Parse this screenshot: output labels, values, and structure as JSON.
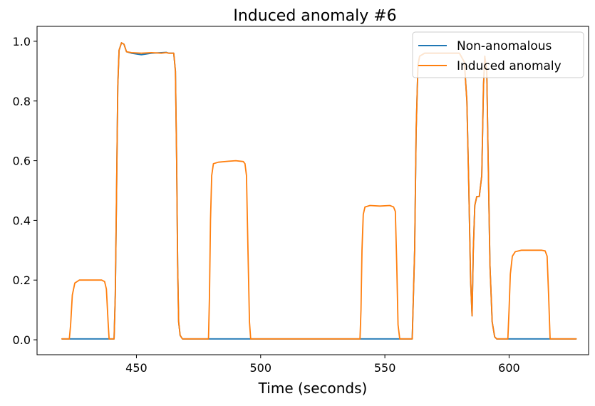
{
  "chart_data": {
    "type": "line",
    "title": "Induced anomaly #6",
    "xlabel": "Time (seconds)",
    "ylabel": "",
    "xlim": [
      410,
      632
    ],
    "ylim": [
      -0.05,
      1.05
    ],
    "xticks": [
      450,
      500,
      550,
      600
    ],
    "yticks": [
      0.0,
      0.2,
      0.4,
      0.6,
      0.8,
      1.0
    ],
    "ytick_labels": [
      "0.0",
      "0.2",
      "0.4",
      "0.6",
      "0.8",
      "1.0"
    ],
    "legend_position": "top-right",
    "series": [
      {
        "name": "Non-anomalous",
        "color": "#1f77b4",
        "x": [
          420,
          441,
          441.5,
          442,
          442.5,
          443,
          444,
          445,
          446,
          448,
          452,
          456,
          460,
          462,
          463,
          465,
          465.7,
          466.2,
          466.6,
          467,
          467.6,
          468.5,
          470,
          561,
          562,
          562.6,
          563.3,
          564,
          566,
          570,
          575,
          580,
          582,
          583,
          583.8,
          584.5,
          585.1,
          585.6,
          586.2,
          587,
          588,
          589,
          589.7,
          590.2,
          591,
          591.6,
          592.3,
          593.2,
          594.2,
          595,
          627
        ],
        "y": [
          0.003,
          0.003,
          0.15,
          0.5,
          0.85,
          0.97,
          0.995,
          0.99,
          0.965,
          0.96,
          0.955,
          0.96,
          0.962,
          0.963,
          0.96,
          0.96,
          0.9,
          0.6,
          0.25,
          0.06,
          0.015,
          0.003,
          0.003,
          0.003,
          0.3,
          0.7,
          0.92,
          0.95,
          0.96,
          0.96,
          0.96,
          0.96,
          0.93,
          0.8,
          0.5,
          0.2,
          0.08,
          0.3,
          0.45,
          0.48,
          0.48,
          0.55,
          0.85,
          0.95,
          0.9,
          0.6,
          0.25,
          0.06,
          0.01,
          0.003,
          0.003
        ]
      },
      {
        "name": "Induced anomaly",
        "color": "#ff7f0e",
        "x": [
          420,
          423,
          423.5,
          424.2,
          425.2,
          427,
          436,
          437.2,
          437.9,
          438.6,
          439,
          441,
          441.5,
          442,
          442.5,
          443,
          444,
          445,
          446,
          448,
          452,
          456,
          460,
          462,
          463,
          465,
          465.7,
          466.2,
          466.6,
          467,
          467.6,
          468.5,
          479,
          479.4,
          479.8,
          480.3,
          481,
          483,
          487,
          490,
          493,
          493.7,
          494.3,
          494.9,
          495.5,
          496,
          540,
          540.4,
          540.8,
          541.3,
          542,
          544,
          548,
          552,
          553.5,
          554.2,
          554.8,
          555.3,
          556,
          561,
          562,
          562.6,
          563.3,
          564,
          566,
          570,
          575,
          580,
          582,
          583,
          583.8,
          584.5,
          585.1,
          585.6,
          586.2,
          587,
          588,
          589,
          589.7,
          590.2,
          591,
          591.6,
          592.3,
          593.2,
          594.2,
          595,
          599.5,
          600,
          600.5,
          601.3,
          602.5,
          605,
          610,
          613,
          614.5,
          615.3,
          615.9,
          616.5,
          627
        ],
        "y": [
          0.003,
          0.003,
          0.05,
          0.15,
          0.19,
          0.2,
          0.2,
          0.195,
          0.17,
          0.06,
          0.003,
          0.003,
          0.15,
          0.5,
          0.85,
          0.97,
          0.995,
          0.99,
          0.965,
          0.962,
          0.96,
          0.962,
          0.96,
          0.962,
          0.96,
          0.96,
          0.9,
          0.6,
          0.25,
          0.06,
          0.015,
          0.003,
          0.003,
          0.15,
          0.4,
          0.55,
          0.59,
          0.595,
          0.598,
          0.6,
          0.597,
          0.59,
          0.55,
          0.3,
          0.06,
          0.003,
          0.003,
          0.1,
          0.3,
          0.42,
          0.445,
          0.45,
          0.448,
          0.45,
          0.445,
          0.43,
          0.25,
          0.05,
          0.003,
          0.003,
          0.3,
          0.7,
          0.92,
          0.95,
          0.96,
          0.96,
          0.96,
          0.96,
          0.93,
          0.8,
          0.5,
          0.2,
          0.08,
          0.3,
          0.45,
          0.48,
          0.48,
          0.55,
          0.85,
          0.95,
          0.9,
          0.6,
          0.25,
          0.06,
          0.01,
          0.003,
          0.003,
          0.1,
          0.22,
          0.28,
          0.295,
          0.3,
          0.3,
          0.3,
          0.298,
          0.28,
          0.15,
          0.003,
          0.003
        ]
      }
    ]
  }
}
